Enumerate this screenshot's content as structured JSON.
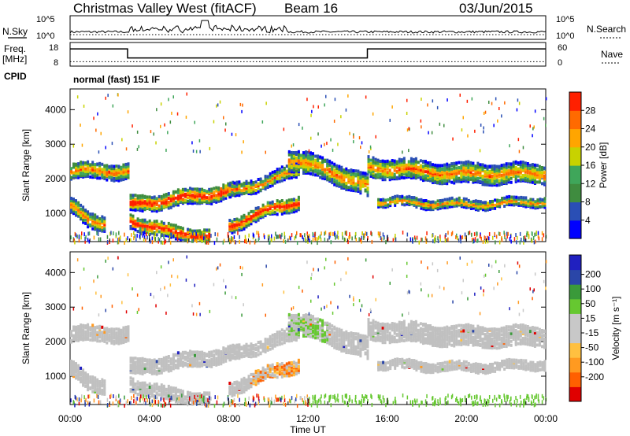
{
  "header": {
    "station": "Christmas Valley West (fitACF)",
    "beam": "Beam 16",
    "date": "03/Jun/2015"
  },
  "left_labels": {
    "nsky": "N.Sky",
    "freq": "Freq.",
    "freq_unit": "[MHz]",
    "cpid": "CPID"
  },
  "right_labels": {
    "nsearch": "N.Search",
    "nave": "Nave"
  },
  "cpid_text": "normal (fast) 151 IF",
  "colors": {
    "power_scale": [
      "#0000ff",
      "#2a4fb5",
      "#3f8c3f",
      "#3fa65a",
      "#c8d200",
      "#ffa500",
      "#ff6a00",
      "#ff2000"
    ],
    "velocity_scale": [
      "#e00000",
      "#ff6000",
      "#ff9a20",
      "#ffc040",
      "#c8c8c8",
      "#c8c8c8",
      "#66c830",
      "#3a9a3a",
      "#2a46a8",
      "#2020c0"
    ],
    "ground_scatter": "#c0c0c0"
  },
  "chart_data": [
    {
      "type": "line",
      "name": "noise",
      "x_range": [
        0,
        24
      ],
      "y_ticks_left": [
        "10^5",
        "10^0"
      ],
      "y_ticks_right": [
        "10^5",
        "10^0"
      ]
    },
    {
      "type": "line",
      "name": "frequency",
      "x_range": [
        0,
        24
      ],
      "y_ticks_left": [
        18,
        8
      ],
      "y_ticks_right": [
        60,
        0
      ],
      "freq_steps": [
        {
          "start": 0,
          "end": 2.9,
          "value": 15.5
        },
        {
          "start": 2.9,
          "end": 15.0,
          "value": 10.5
        },
        {
          "start": 15.0,
          "end": 24,
          "value": 15.5
        }
      ],
      "nave_level": 12
    },
    {
      "type": "heatmap",
      "name": "power",
      "ylabel": "Slant Range [km]",
      "y_ticks": [
        1000,
        2000,
        3000,
        4000
      ],
      "ylim": [
        180,
        4600
      ],
      "colorbar": {
        "label": "Power [dB]",
        "ticks": [
          4,
          8,
          12,
          16,
          20,
          24,
          28
        ],
        "range": [
          0,
          32
        ]
      },
      "bands": [
        {
          "x": [
            0.0,
            2.9
          ],
          "center": [
            2250,
            2300,
            2250
          ],
          "width": 220
        },
        {
          "x": [
            3.0,
            8.5
          ],
          "center": [
            1300,
            1500,
            1750
          ],
          "width": 220
        },
        {
          "x": [
            8.0,
            11.5
          ],
          "center": [
            1650,
            1950,
            2300
          ],
          "width": 180
        },
        {
          "x": [
            3.0,
            7.0
          ],
          "center": [
            850,
            500,
            400
          ],
          "width": 200
        },
        {
          "x": [
            8.0,
            11.5
          ],
          "center": [
            700,
            1100,
            1400
          ],
          "width": 200
        },
        {
          "x": [
            11.0,
            15.0
          ],
          "center": [
            2600,
            2300,
            1800
          ],
          "width": 300
        },
        {
          "x": [
            15.0,
            24.0
          ],
          "center": [
            2400,
            2200,
            2200
          ],
          "width": 280
        },
        {
          "x": [
            15.5,
            24.0
          ],
          "center": [
            1400,
            1300,
            1400
          ],
          "width": 120
        },
        {
          "x": [
            0.0,
            1.8
          ],
          "center": [
            1250,
            900,
            750
          ],
          "width": 220
        }
      ]
    },
    {
      "type": "heatmap",
      "name": "velocity",
      "ylabel": "Slant Range [km]",
      "y_ticks": [
        1000,
        2000,
        3000,
        4000
      ],
      "ylim": [
        180,
        4600
      ],
      "colorbar": {
        "label": "Velocity [m s⁻¹]",
        "ticks": [
          200,
          100,
          50,
          15,
          -15,
          -50,
          -100,
          -200
        ]
      },
      "xlabel": "Time UT",
      "x_ticks": [
        "00:00",
        "04:00",
        "08:00",
        "12:00",
        "16:00",
        "20:00",
        "00:00"
      ]
    }
  ]
}
